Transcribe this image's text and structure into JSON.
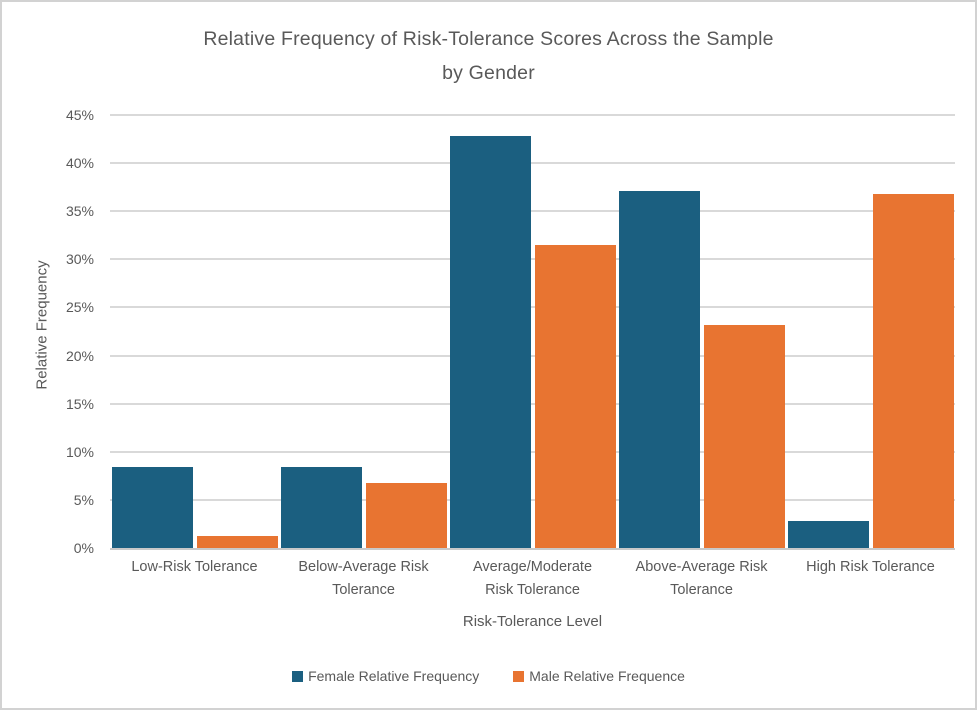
{
  "chart_data": {
    "type": "bar",
    "title": "Relative Frequency of Risk-Tolerance Scores Across the Sample by Gender",
    "title_lines": [
      "Relative Frequency of Risk-Tolerance Scores Across the Sample",
      "by Gender"
    ],
    "xlabel": "Risk-Tolerance Level",
    "ylabel": "Relative Frequency",
    "ylim": [
      0,
      45
    ],
    "ytick_step": 5,
    "yticks": [
      {
        "value": 45,
        "label": "45%"
      },
      {
        "value": 40,
        "label": "40%"
      },
      {
        "value": 35,
        "label": "35%"
      },
      {
        "value": 30,
        "label": "30%"
      },
      {
        "value": 25,
        "label": "25%"
      },
      {
        "value": 20,
        "label": "20%"
      },
      {
        "value": 15,
        "label": "15%"
      },
      {
        "value": 10,
        "label": "10%"
      },
      {
        "value": 5,
        "label": "5%"
      },
      {
        "value": 0,
        "label": "0%"
      }
    ],
    "grid": true,
    "legend_position": "bottom",
    "categories": [
      "Low-Risk Tolerance",
      "Below-Average Risk Tolerance",
      "Average/Moderate Risk Tolerance",
      "Above-Average Risk Tolerance",
      "High Risk Tolerance"
    ],
    "category_label_lines": [
      [
        "Low-Risk Tolerance"
      ],
      [
        "Below-Average Risk",
        "Tolerance"
      ],
      [
        "Average/Moderate",
        "Risk Tolerance"
      ],
      [
        "Above-Average Risk",
        "Tolerance"
      ],
      [
        "High Risk Tolerance"
      ]
    ],
    "value_unit": "%",
    "series": [
      {
        "name": "Female Relative Frequency",
        "color": "#1B5F80",
        "values": [
          8.4,
          8.4,
          42.8,
          37.1,
          2.8
        ]
      },
      {
        "name": "Male Relative Frequence",
        "color": "#E87431",
        "values": [
          1.2,
          6.8,
          31.5,
          23.2,
          36.8
        ]
      }
    ]
  },
  "colors": {
    "text": "#595959",
    "gridline": "#D9D9D9",
    "axis_line": "#C9C9C9",
    "frame_border": "#D2D2D2",
    "background": "#FFFFFF"
  }
}
